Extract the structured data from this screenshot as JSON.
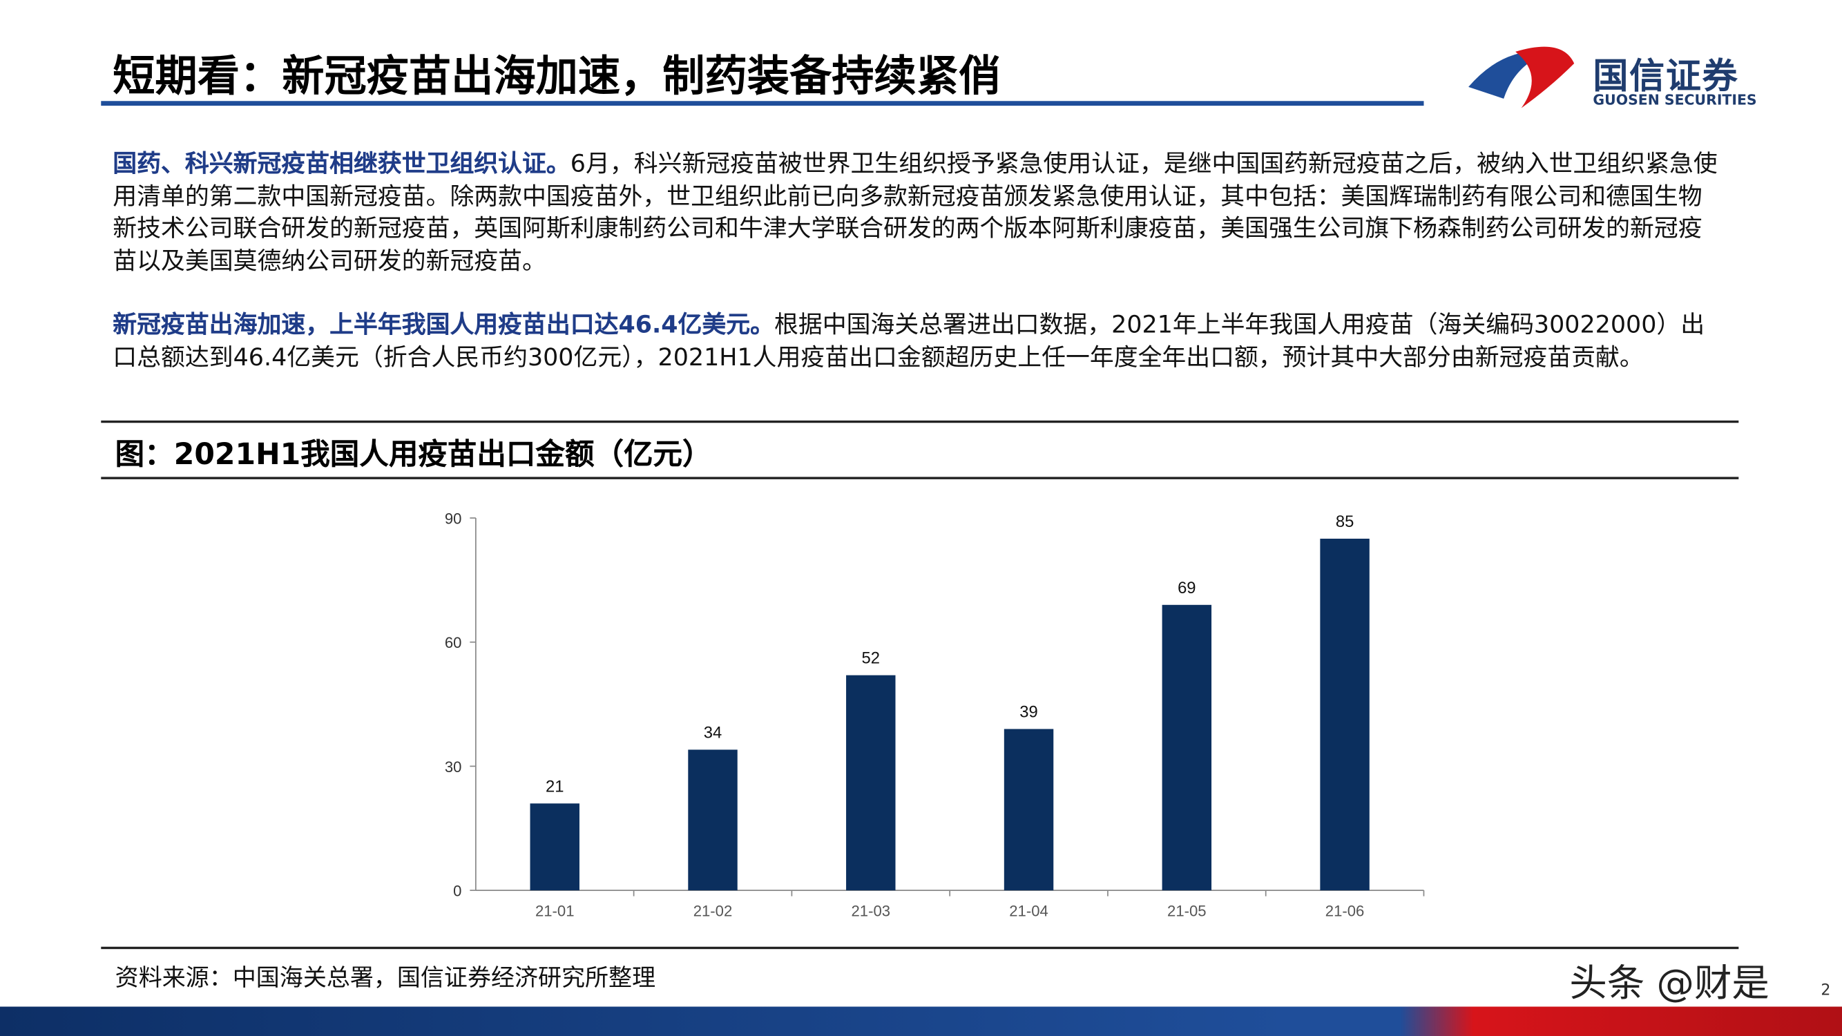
{
  "header": {
    "title": "短期看：新冠疫苗出海加速，制药装备持续紧俏",
    "logo_cn": "国信证券",
    "logo_en": "GUOSEN SECURITIES"
  },
  "paragraphs": [
    {
      "lead": "国药、科兴新冠疫苗相继获世卫组织认证。",
      "text": "6月，科兴新冠疫苗被世界卫生组织授予紧急使用认证，是继中国国药新冠疫苗之后，被纳入世卫组织紧急使用清单的第二款中国新冠疫苗。除两款中国疫苗外，世卫组织此前已向多款新冠疫苗颁发紧急使用认证，其中包括：美国辉瑞制药有限公司和德国生物新技术公司联合研发的新冠疫苗，英国阿斯利康制药公司和牛津大学联合研发的两个版本阿斯利康疫苗，美国强生公司旗下杨森制药公司研发的新冠疫苗以及美国莫德纳公司研发的新冠疫苗。"
    },
    {
      "lead": "新冠疫苗出海加速，上半年我国人用疫苗出口达46.4亿美元。",
      "text": "根据中国海关总署进出口数据，2021年上半年我国人用疫苗（海关编码30022000）出口总额达到46.4亿美元（折合人民币约300亿元），2021H1人用疫苗出口金额超历史上任一年度全年出口额，预计其中大部分由新冠疫苗贡献。"
    }
  ],
  "chart_data": {
    "type": "bar",
    "title": "图：2021H1我国人用疫苗出口金额（亿元）",
    "categories": [
      "21-01",
      "21-02",
      "21-03",
      "21-04",
      "21-05",
      "21-06"
    ],
    "values": [
      21,
      34,
      52,
      39,
      69,
      85
    ],
    "color": "#0b2f5e",
    "ylim": [
      0,
      90
    ],
    "yticks": [
      0,
      30,
      60,
      90
    ],
    "grid": false
  },
  "source": "资料来源：中国海关总署，国信证券经济研究所整理",
  "watermark": "头条 @财是",
  "page_number": "2"
}
